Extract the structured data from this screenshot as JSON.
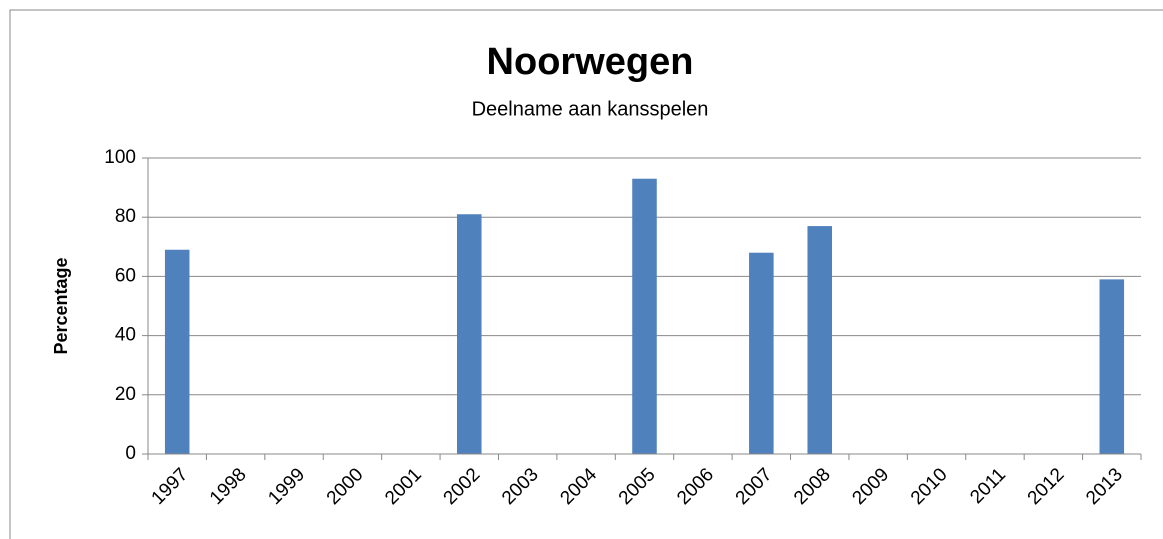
{
  "chart_data": {
    "type": "bar",
    "title": "Noorwegen",
    "subtitle": "Deelname aan kansspelen",
    "y_label": "Percentage",
    "categories": [
      "1997",
      "1998",
      "1999",
      "2000",
      "2001",
      "2002",
      "2003",
      "2004",
      "2005",
      "2006",
      "2007",
      "2008",
      "2009",
      "2010",
      "2011",
      "2012",
      "2013"
    ],
    "values": [
      69,
      null,
      null,
      null,
      null,
      81,
      null,
      null,
      93,
      null,
      68,
      77,
      null,
      null,
      null,
      null,
      59
    ],
    "color": "#4f81bd",
    "ylim": [
      0,
      100
    ],
    "yticks": [
      0,
      20,
      40,
      60,
      80,
      100
    ],
    "grid": true
  }
}
